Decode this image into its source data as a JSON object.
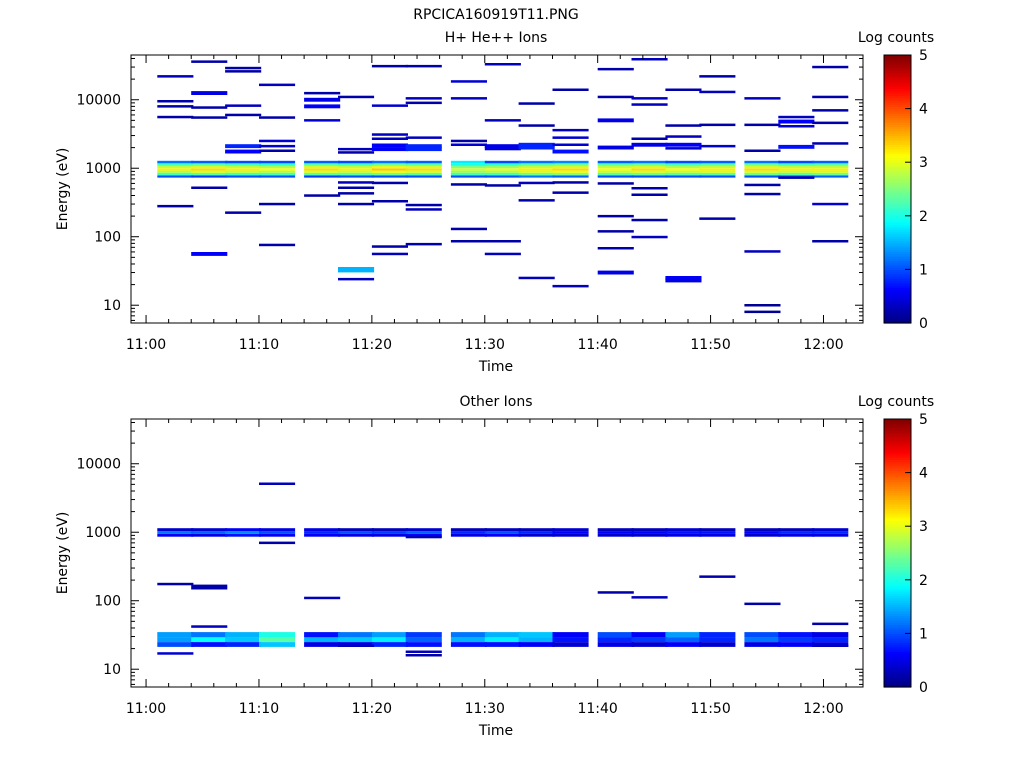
{
  "page_title": "RPCICA160919T11.PNG",
  "chart_data": [
    {
      "type": "heatmap",
      "title": "H+ He++ Ions",
      "xlabel": "Time",
      "ylabel": "Energy (eV)",
      "yscale": "log",
      "ylim": [
        5.5,
        45000
      ],
      "xlim": [
        "10:58:40",
        "12:03:30"
      ],
      "x_ticks": [
        "11:00",
        "11:10",
        "11:20",
        "11:30",
        "11:40",
        "11:50",
        "12:00"
      ],
      "y_ticks": [
        "10",
        "100",
        "1000",
        "10000"
      ],
      "colorbar": {
        "label": "Log counts",
        "range": [
          0,
          5
        ],
        "ticks": [
          "0",
          "1",
          "2",
          "3",
          "4",
          "5"
        ],
        "colormap": "jet"
      },
      "time_bins_start": [
        "11:01",
        "11:04",
        "11:07",
        "11:10",
        "11:14",
        "11:17",
        "11:20",
        "11:23",
        "11:27",
        "11:30",
        "11:33",
        "11:36",
        "11:40",
        "11:43",
        "11:46",
        "11:49",
        "11:53",
        "11:56",
        "11:59"
      ],
      "time_bin_minutes": 3.2,
      "band": {
        "energy_bins": [
          760,
          820,
          890,
          960,
          1040,
          1130,
          1230
        ],
        "comment_free_grid": [
          [
            1.0,
            2.2,
            2.7,
            3.2,
            2.8,
            2.2,
            1.2
          ],
          [
            0.9,
            2.3,
            2.9,
            3.3,
            2.9,
            2.3,
            1.1
          ],
          [
            1.0,
            2.2,
            2.8,
            3.2,
            2.8,
            2.2,
            1.0
          ],
          [
            1.0,
            2.2,
            2.7,
            3.1,
            2.7,
            2.1,
            1.0
          ],
          [
            0.9,
            2.3,
            2.9,
            3.3,
            2.9,
            2.3,
            1.1
          ],
          [
            1.0,
            2.3,
            2.8,
            3.2,
            2.8,
            2.2,
            1.0
          ],
          [
            1.0,
            2.4,
            3.0,
            3.4,
            3.0,
            2.4,
            1.2
          ],
          [
            1.0,
            2.3,
            2.9,
            3.3,
            2.9,
            2.3,
            1.1
          ],
          [
            1.0,
            2.2,
            2.6,
            2.9,
            2.5,
            2.0,
            1.8
          ],
          [
            1.0,
            2.2,
            2.7,
            3.0,
            2.6,
            2.1,
            1.0
          ],
          [
            1.2,
            2.4,
            2.9,
            3.2,
            2.8,
            2.3,
            1.2
          ],
          [
            1.1,
            2.5,
            3.0,
            3.3,
            2.9,
            2.4,
            1.3
          ],
          [
            1.0,
            2.3,
            2.8,
            3.1,
            2.8,
            2.3,
            1.1
          ],
          [
            1.0,
            2.4,
            2.9,
            3.3,
            2.9,
            2.4,
            1.2
          ],
          [
            1.0,
            2.3,
            2.8,
            3.1,
            2.7,
            2.2,
            1.0
          ],
          [
            1.0,
            2.3,
            2.9,
            3.2,
            2.8,
            2.3,
            1.1
          ],
          [
            1.0,
            2.4,
            2.9,
            3.3,
            2.9,
            2.4,
            1.2
          ],
          [
            1.0,
            2.3,
            2.8,
            3.2,
            2.8,
            2.2,
            1.0
          ],
          [
            1.1,
            2.4,
            2.9,
            3.2,
            2.8,
            2.3,
            1.1
          ]
        ]
      },
      "points": [
        [
          0,
          22000,
          0.3
        ],
        [
          0,
          9500,
          0.2
        ],
        [
          0,
          8000,
          0.2
        ],
        [
          0,
          5600,
          0.2
        ],
        [
          0,
          280,
          0.2
        ],
        [
          1,
          36000,
          0.2
        ],
        [
          1,
          12500,
          0.5
        ],
        [
          1,
          7700,
          0.2
        ],
        [
          1,
          5500,
          0.2
        ],
        [
          1,
          520,
          0.2
        ],
        [
          1,
          56,
          0.6
        ],
        [
          2,
          29000,
          0.2
        ],
        [
          2,
          26000,
          0.2
        ],
        [
          2,
          8200,
          0.3
        ],
        [
          2,
          6000,
          0.2
        ],
        [
          2,
          2100,
          0.8
        ],
        [
          2,
          1750,
          0.6
        ],
        [
          2,
          225,
          0.2
        ],
        [
          3,
          16500,
          0.3
        ],
        [
          3,
          5500,
          0.2
        ],
        [
          3,
          2500,
          0.4
        ],
        [
          3,
          2100,
          0.4
        ],
        [
          3,
          1800,
          0.2
        ],
        [
          3,
          300,
          0.2
        ],
        [
          3,
          76,
          0.2
        ],
        [
          4,
          12500,
          0.2
        ],
        [
          4,
          10000,
          0.5
        ],
        [
          4,
          8000,
          0.6
        ],
        [
          4,
          5000,
          0.4
        ],
        [
          4,
          400,
          0.2
        ],
        [
          5,
          11000,
          0.2
        ],
        [
          5,
          1900,
          0.3
        ],
        [
          5,
          1700,
          0.2
        ],
        [
          5,
          620,
          0.3
        ],
        [
          5,
          520,
          0.2
        ],
        [
          5,
          430,
          0.2
        ],
        [
          5,
          300,
          0.2
        ],
        [
          5,
          33,
          1.5
        ],
        [
          5,
          24,
          0.3
        ],
        [
          6,
          31000,
          0.2
        ],
        [
          6,
          8200,
          0.4
        ],
        [
          6,
          3100,
          0.3
        ],
        [
          6,
          2700,
          0.3
        ],
        [
          6,
          2150,
          0.6
        ],
        [
          6,
          1900,
          0.6
        ],
        [
          6,
          610,
          0.2
        ],
        [
          6,
          330,
          0.2
        ],
        [
          6,
          72,
          0.2
        ],
        [
          6,
          56,
          0.3
        ],
        [
          7,
          31000,
          0.2
        ],
        [
          7,
          10500,
          0.3
        ],
        [
          7,
          9000,
          0.2
        ],
        [
          7,
          2800,
          0.3
        ],
        [
          7,
          2100,
          0.8
        ],
        [
          7,
          1900,
          0.8
        ],
        [
          7,
          290,
          0.2
        ],
        [
          7,
          250,
          0.3
        ],
        [
          7,
          78,
          0.2
        ],
        [
          8,
          18500,
          0.4
        ],
        [
          8,
          10500,
          0.3
        ],
        [
          8,
          2500,
          0.2
        ],
        [
          8,
          2200,
          0.4
        ],
        [
          8,
          580,
          0.2
        ],
        [
          8,
          130,
          0.2
        ],
        [
          8,
          86,
          0.2
        ],
        [
          9,
          33000,
          0.3
        ],
        [
          9,
          5000,
          0.3
        ],
        [
          9,
          2100,
          0.5
        ],
        [
          9,
          1950,
          0.5
        ],
        [
          9,
          560,
          0.2
        ],
        [
          9,
          86,
          0.2
        ],
        [
          9,
          56,
          0.3
        ],
        [
          10,
          8800,
          0.2
        ],
        [
          10,
          4200,
          0.2
        ],
        [
          10,
          2200,
          0.8
        ],
        [
          10,
          2000,
          0.8
        ],
        [
          10,
          610,
          0.3
        ],
        [
          10,
          340,
          0.2
        ],
        [
          10,
          25,
          0.3
        ],
        [
          11,
          14000,
          0.2
        ],
        [
          11,
          3600,
          0.3
        ],
        [
          11,
          2800,
          0.4
        ],
        [
          11,
          2200,
          0.4
        ],
        [
          11,
          1750,
          0.7
        ],
        [
          11,
          620,
          0.2
        ],
        [
          11,
          440,
          0.2
        ],
        [
          11,
          19,
          0.3
        ],
        [
          12,
          28000,
          0.2
        ],
        [
          12,
          11000,
          0.2
        ],
        [
          12,
          5000,
          0.5
        ],
        [
          12,
          2000,
          0.5
        ],
        [
          12,
          600,
          0.2
        ],
        [
          12,
          200,
          0.2
        ],
        [
          12,
          120,
          0.2
        ],
        [
          12,
          68,
          0.2
        ],
        [
          12,
          30,
          0.5
        ],
        [
          13,
          39000,
          0.3
        ],
        [
          13,
          10500,
          0.3
        ],
        [
          13,
          8500,
          0.3
        ],
        [
          13,
          2700,
          0.2
        ],
        [
          13,
          2200,
          0.5
        ],
        [
          13,
          510,
          0.2
        ],
        [
          13,
          410,
          0.2
        ],
        [
          13,
          175,
          0.2
        ],
        [
          13,
          99,
          0.3
        ],
        [
          14,
          14000,
          0.2
        ],
        [
          14,
          4200,
          0.2
        ],
        [
          14,
          2900,
          0.3
        ],
        [
          14,
          2200,
          0.6
        ],
        [
          14,
          1950,
          0.4
        ],
        [
          14,
          25,
          0.6
        ],
        [
          14,
          23,
          0.5
        ],
        [
          15,
          22000,
          0.2
        ],
        [
          15,
          13000,
          0.3
        ],
        [
          15,
          4300,
          0.2
        ],
        [
          15,
          2100,
          0.4
        ],
        [
          15,
          184,
          0.2
        ],
        [
          16,
          10500,
          0.3
        ],
        [
          16,
          4300,
          0.2
        ],
        [
          16,
          1800,
          0.2
        ],
        [
          16,
          570,
          0.2
        ],
        [
          16,
          420,
          0.2
        ],
        [
          16,
          61,
          0.3
        ],
        [
          16,
          10,
          0.1
        ],
        [
          16,
          8,
          0.1
        ],
        [
          17,
          5600,
          0.3
        ],
        [
          17,
          4800,
          0.6
        ],
        [
          17,
          4100,
          0.4
        ],
        [
          17,
          2050,
          0.7
        ],
        [
          17,
          730,
          0.2
        ],
        [
          18,
          30000,
          0.2
        ],
        [
          18,
          11000,
          0.2
        ],
        [
          18,
          7000,
          0.2
        ],
        [
          18,
          4600,
          0.2
        ],
        [
          18,
          2300,
          0.2
        ],
        [
          18,
          300,
          0.4
        ],
        [
          18,
          86,
          0.2
        ]
      ]
    },
    {
      "type": "heatmap",
      "title": "Other Ions",
      "xlabel": "Time",
      "ylabel": "Energy (eV)",
      "yscale": "log",
      "ylim": [
        5.5,
        45000
      ],
      "xlim": [
        "10:58:40",
        "12:03:30"
      ],
      "x_ticks": [
        "11:00",
        "11:10",
        "11:20",
        "11:30",
        "11:40",
        "11:50",
        "12:00"
      ],
      "y_ticks": [
        "10",
        "100",
        "1000",
        "10000"
      ],
      "colorbar": {
        "label": "Log counts",
        "range": [
          0,
          5
        ],
        "ticks": [
          "0",
          "1",
          "2",
          "3",
          "4",
          "5"
        ],
        "colormap": "jet"
      },
      "time_bins_start": [
        "11:01",
        "11:04",
        "11:07",
        "11:10",
        "11:14",
        "11:17",
        "11:20",
        "11:23",
        "11:27",
        "11:30",
        "11:33",
        "11:36",
        "11:40",
        "11:43",
        "11:46",
        "11:49",
        "11:53",
        "11:56",
        "11:59"
      ],
      "time_bin_minutes": 3.2,
      "band_high": {
        "energy_bins": [
          900,
          990,
          1090
        ],
        "grid": [
          [
            0.6,
            1.2,
            0.4
          ],
          [
            0.5,
            1.1,
            0.4
          ],
          [
            0.7,
            1.3,
            0.6
          ],
          [
            0.6,
            1.0,
            0.5
          ],
          [
            0.6,
            0.8,
            0.5
          ],
          [
            0.5,
            1.0,
            0.3
          ],
          [
            0.5,
            0.9,
            0.3
          ],
          [
            0.6,
            1.1,
            0.4
          ],
          [
            0.5,
            0.8,
            0.3
          ],
          [
            0.6,
            1.0,
            0.3
          ],
          [
            0.4,
            0.8,
            0.3
          ],
          [
            0.4,
            0.6,
            0.4
          ],
          [
            0.4,
            0.6,
            0.3
          ],
          [
            0.4,
            0.6,
            0.3
          ],
          [
            0.5,
            0.7,
            0.4
          ],
          [
            0.5,
            0.7,
            0.3
          ],
          [
            0.4,
            0.6,
            0.3
          ],
          [
            0.5,
            0.8,
            0.3
          ],
          [
            0.5,
            0.8,
            0.4
          ]
        ]
      },
      "band_low": {
        "energy_bins": [
          23,
          27,
          32
        ],
        "grid": [
          [
            1.0,
            1.4,
            1.4
          ],
          [
            0.7,
            1.9,
            1.2
          ],
          [
            0.8,
            1.6,
            1.5
          ],
          [
            1.6,
            2.3,
            2.0
          ],
          [
            0.5,
            1.5,
            0.7
          ],
          [
            0.5,
            1.6,
            1.2
          ],
          [
            0.8,
            1.8,
            1.4
          ],
          [
            0.7,
            1.1,
            0.9
          ],
          [
            0.7,
            1.5,
            1.2
          ],
          [
            0.7,
            1.8,
            1.5
          ],
          [
            0.6,
            1.5,
            1.6
          ],
          [
            0.4,
            0.7,
            0.6
          ],
          [
            0.5,
            0.8,
            1.0
          ],
          [
            0.4,
            0.9,
            0.6
          ],
          [
            0.6,
            1.1,
            1.4
          ],
          [
            0.4,
            0.8,
            0.8
          ],
          [
            0.5,
            1.2,
            1.0
          ],
          [
            0.6,
            0.9,
            0.7
          ],
          [
            0.5,
            0.8,
            0.5
          ]
        ]
      },
      "points": [
        [
          0,
          17,
          0.4
        ],
        [
          0,
          175,
          0.2
        ],
        [
          1,
          42,
          0.3
        ],
        [
          1,
          165,
          0.2
        ],
        [
          1,
          152,
          0.2
        ],
        [
          3,
          5100,
          0.3
        ],
        [
          3,
          700,
          0.2
        ],
        [
          4,
          110,
          0.3
        ],
        [
          5,
          22,
          0.3
        ],
        [
          7,
          850,
          0.3
        ],
        [
          7,
          18,
          0.3
        ],
        [
          7,
          16,
          0.2
        ],
        [
          12,
          132,
          0.2
        ],
        [
          13,
          112,
          0.3
        ],
        [
          15,
          225,
          0.2
        ],
        [
          16,
          90,
          0.2
        ],
        [
          18,
          46,
          0.2
        ],
        [
          18,
          22,
          0.3
        ]
      ]
    }
  ]
}
